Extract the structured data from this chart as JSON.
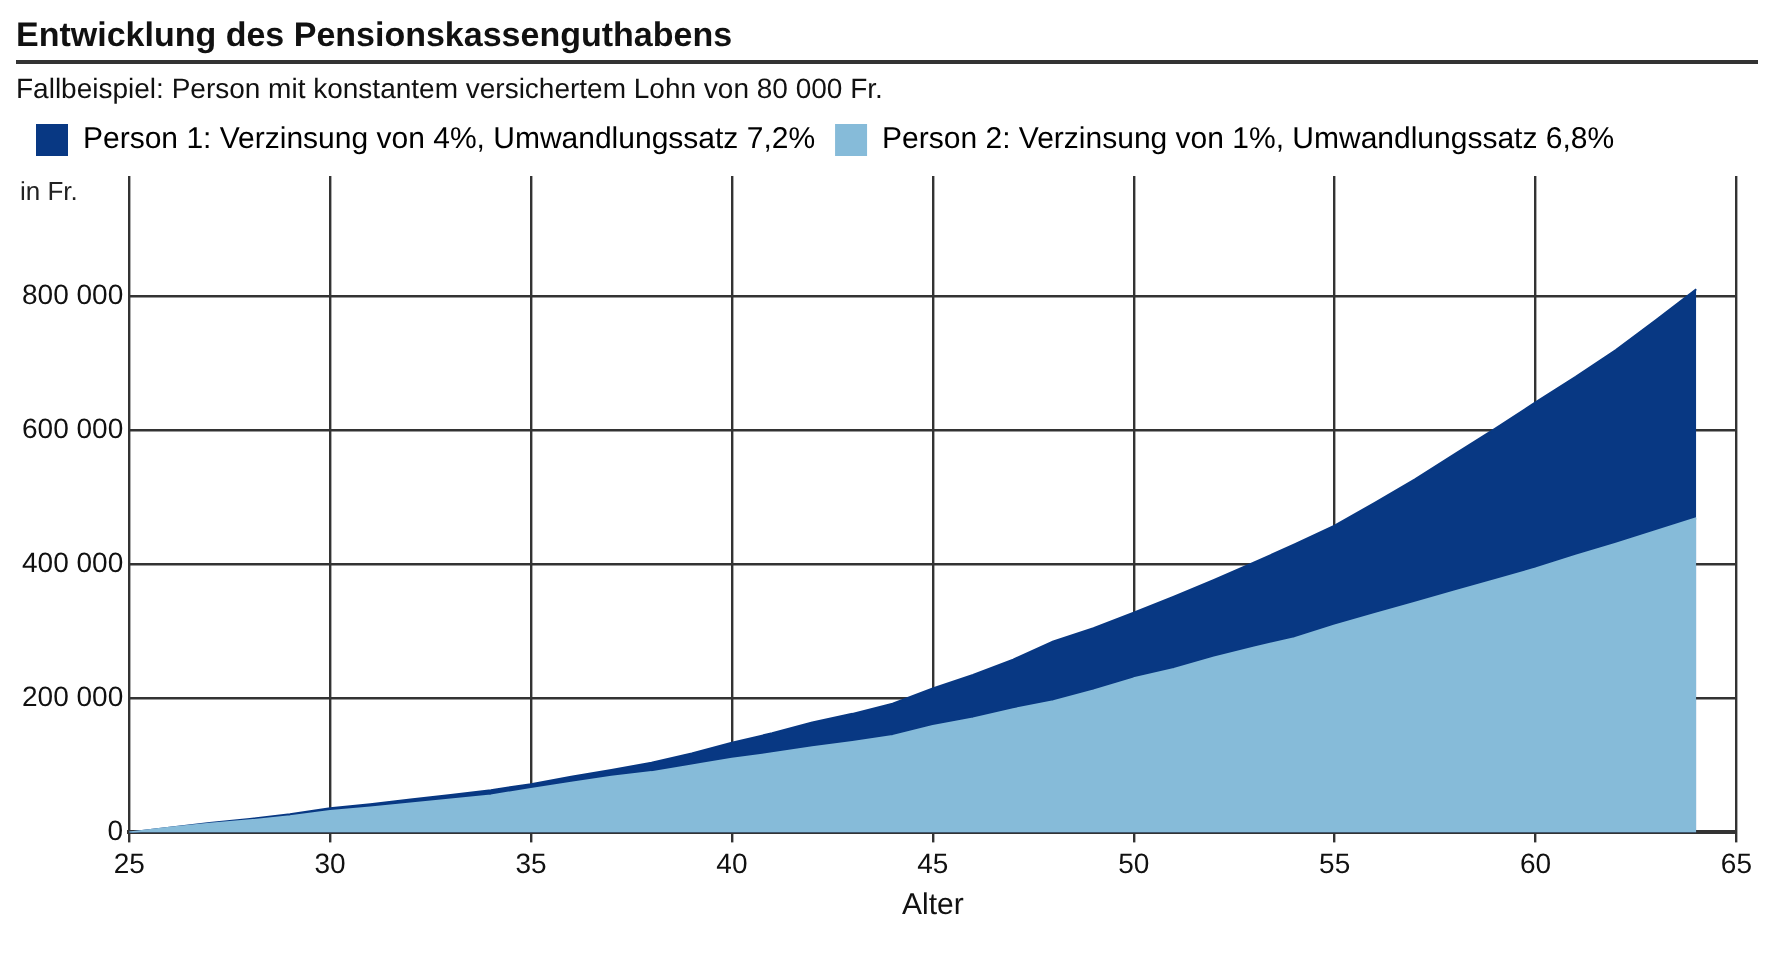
{
  "chart_data": {
    "type": "area",
    "title": "Entwicklung des Pensionskassenguthabens",
    "subtitle": "Fallbeispiel: Person mit konstantem versichertem Lohn von 80 000 Fr.",
    "xlabel": "Alter",
    "ylabel": "in Fr.",
    "x": [
      25,
      26,
      27,
      28,
      29,
      30,
      31,
      32,
      33,
      34,
      35,
      36,
      37,
      38,
      39,
      40,
      41,
      42,
      43,
      44,
      45,
      46,
      47,
      48,
      49,
      50,
      51,
      52,
      53,
      54,
      55,
      56,
      57,
      58,
      59,
      60,
      61,
      62,
      63,
      64
    ],
    "series": [
      {
        "name": "Person 1: Verzinsung von 4%, Umwandlungssatz 7,2%",
        "color": "#083883",
        "values": [
          0,
          7000,
          14000,
          20000,
          27000,
          36000,
          42000,
          49000,
          56000,
          63000,
          72000,
          83000,
          93000,
          104000,
          118000,
          134000,
          148000,
          164000,
          177000,
          192000,
          215000,
          235000,
          258000,
          285000,
          305000,
          328000,
          352000,
          377000,
          403000,
          430000,
          458000,
          492000,
          527000,
          565000,
          603000,
          642000,
          680000,
          720000,
          765000,
          811000
        ]
      },
      {
        "name": "Person 2: Verzinsung von 1%, Umwandlungssatz 6,8%",
        "color": "#86bbd9",
        "values": [
          0,
          7000,
          13000,
          18000,
          24000,
          32000,
          37000,
          43000,
          49000,
          55000,
          65000,
          74000,
          83000,
          90000,
          100000,
          110000,
          118000,
          127000,
          135000,
          144000,
          159000,
          170000,
          184000,
          196000,
          212000,
          230000,
          244000,
          261000,
          276000,
          290000,
          309000,
          326000,
          343000,
          360000,
          377000,
          394000,
          413000,
          431000,
          450000,
          469000
        ]
      }
    ],
    "xlim": [
      25,
      65
    ],
    "xticks": [
      25,
      30,
      35,
      40,
      45,
      50,
      55,
      60,
      65
    ],
    "ylim": [
      0,
      980000
    ],
    "yticks": [
      0,
      {
        "value": 200000,
        "label": "200 000"
      },
      {
        "value": 400000,
        "label": "400 000"
      },
      {
        "value": 600000,
        "label": "600 000"
      },
      {
        "value": 800000,
        "label": "800 000"
      }
    ],
    "grid": true,
    "legend": "top left"
  }
}
